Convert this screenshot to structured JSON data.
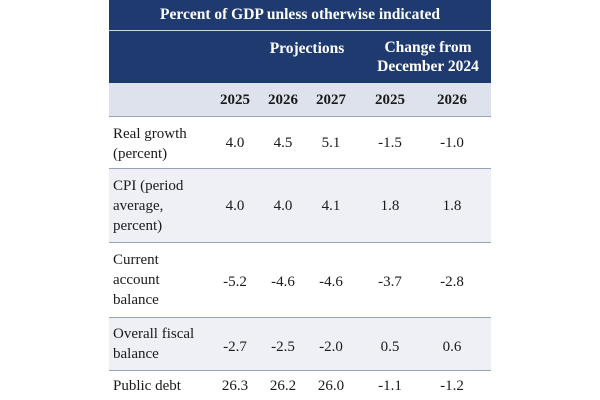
{
  "table": {
    "title": "Percent of GDP unless otherwise indicated",
    "groups": {
      "projections": "Projections",
      "change_line1": "Change from",
      "change_line2": "December 2024"
    },
    "years": [
      "2025",
      "2026",
      "2027",
      "2025",
      "2026"
    ],
    "rows": [
      {
        "label_lines": [
          "Real growth",
          "(percent)"
        ],
        "values": [
          "4.0",
          "4.5",
          "5.1",
          "-1.5",
          "-1.0"
        ]
      },
      {
        "label_lines": [
          "CPI (period",
          "average,",
          "percent)"
        ],
        "values": [
          "4.0",
          "4.0",
          "4.1",
          "1.8",
          "1.8"
        ]
      },
      {
        "label_lines": [
          "Current",
          "account",
          "balance"
        ],
        "values": [
          "-5.2",
          "-4.6",
          "-4.6",
          "-3.7",
          "-2.8"
        ]
      },
      {
        "label_lines": [
          "Overall fiscal",
          "balance"
        ],
        "values": [
          "-2.7",
          "-2.5",
          "-2.0",
          "0.5",
          "0.6"
        ]
      },
      {
        "label_lines": [
          "Public debt"
        ],
        "values": [
          "26.3",
          "26.2",
          "26.0",
          "-1.1",
          "-1.2"
        ]
      }
    ]
  }
}
